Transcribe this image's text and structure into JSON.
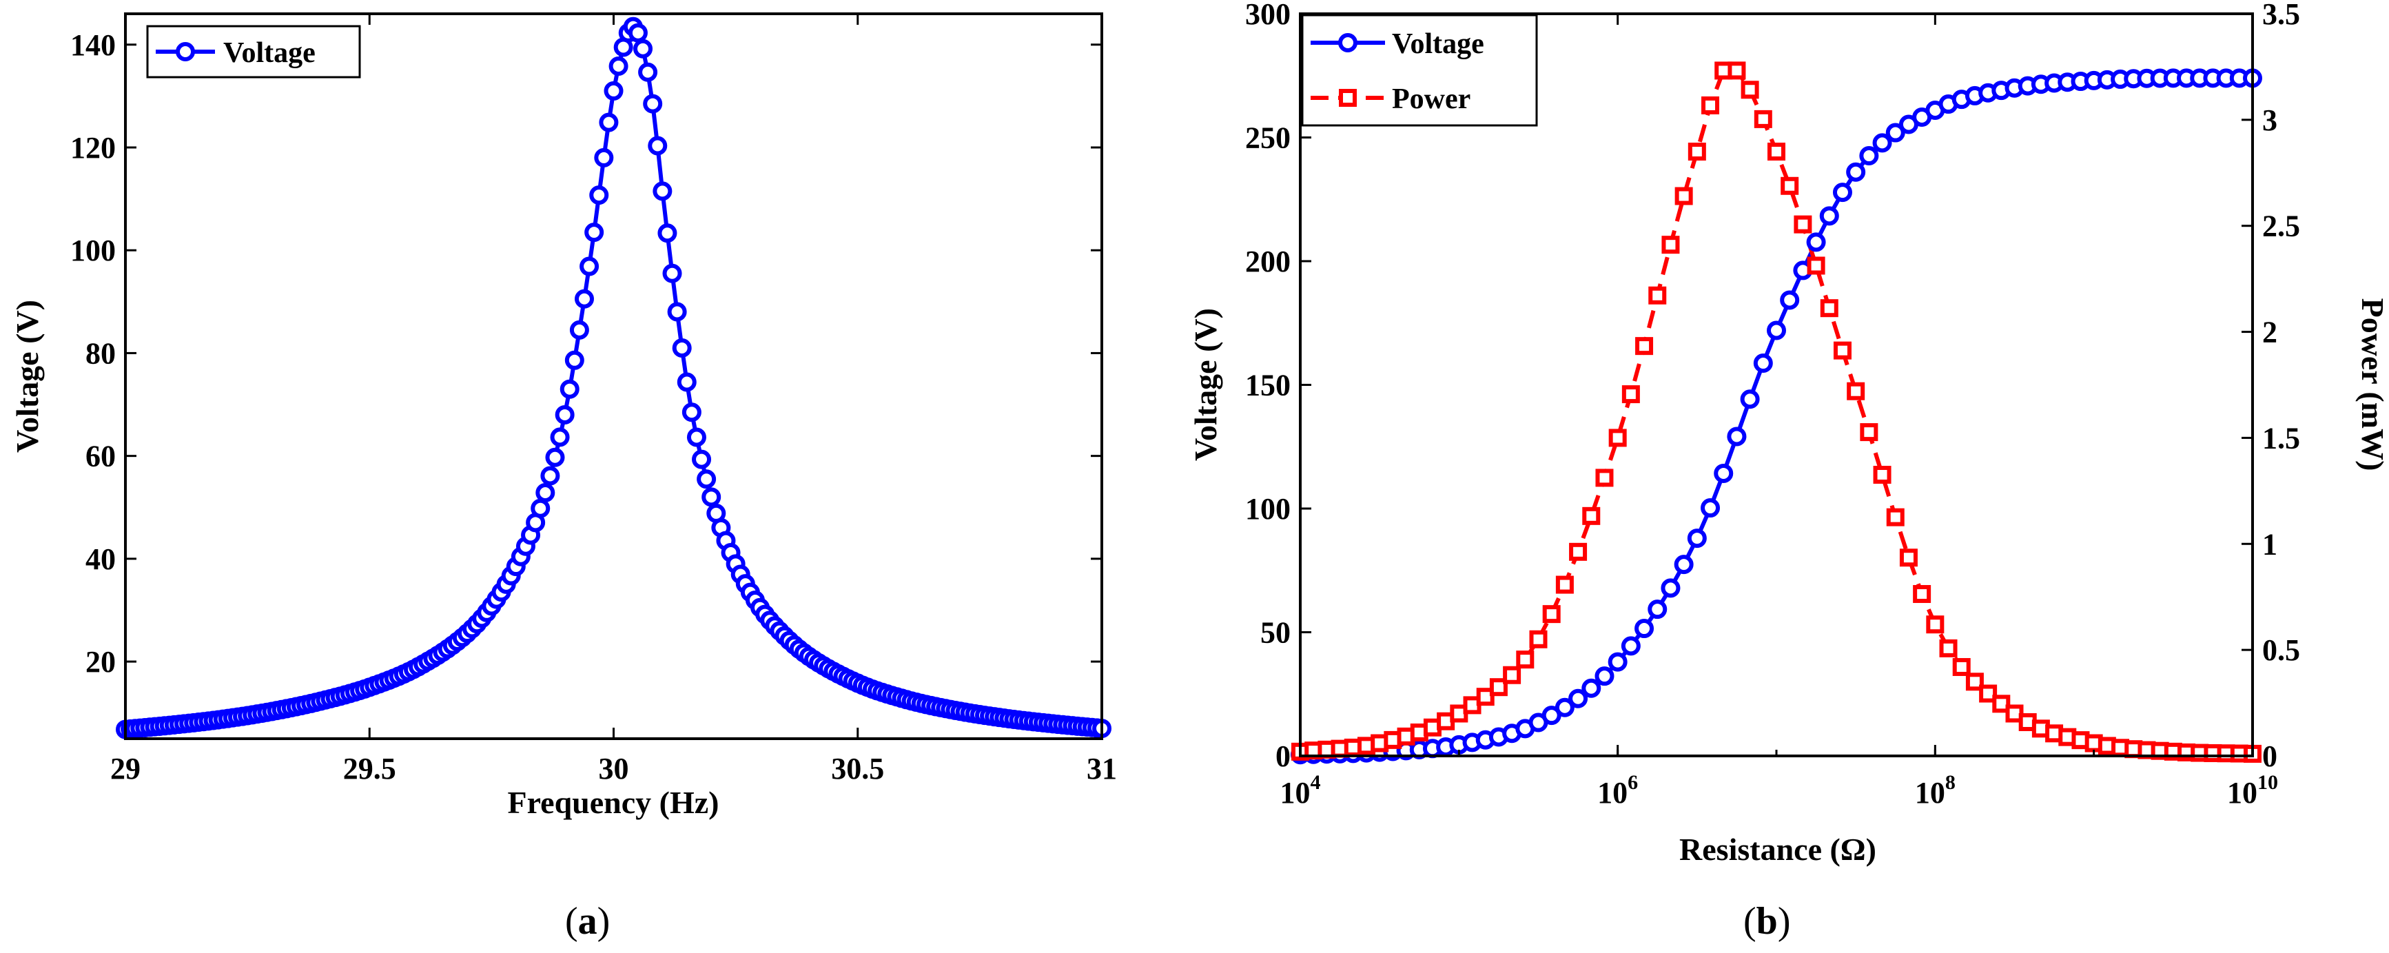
{
  "captions": {
    "a": "a",
    "b": "b"
  },
  "chart_data": [
    {
      "type": "line",
      "xlabel": "Frequency (Hz)",
      "ylabel": "Voltage (V)",
      "xlim": [
        29,
        31
      ],
      "ylim": [
        5,
        146
      ],
      "xticks": [
        29,
        29.5,
        30,
        30.5,
        31
      ],
      "xtick_labels": [
        "29",
        "29.5",
        "30",
        "30.5",
        "31"
      ],
      "yticks": [
        20,
        40,
        60,
        80,
        100,
        120,
        140
      ],
      "ytick_labels": [
        "20",
        "40",
        "60",
        "80",
        "100",
        "120",
        "140"
      ],
      "legend": "top-left",
      "grid": false,
      "series": [
        {
          "name": "Voltage",
          "color": "#0000ff",
          "marker": "circle",
          "x": [
            29.0,
            29.1,
            29.2,
            29.3,
            29.4,
            29.5,
            29.6,
            29.7,
            29.75,
            29.8,
            29.85,
            29.9,
            29.93,
            29.96,
            29.98,
            30.0,
            30.02,
            30.04,
            30.06,
            30.08,
            30.1,
            30.12,
            30.14,
            30.16,
            30.2,
            30.25,
            30.3,
            30.35,
            30.4,
            30.5,
            30.6,
            30.7,
            30.8,
            30.9,
            31.0
          ],
          "y": [
            6.8,
            7.7,
            8.8,
            10.3,
            12.3,
            15.0,
            19.0,
            25.5,
            30.8,
            38.5,
            49.8,
            68.0,
            84.5,
            103.5,
            118.0,
            131.0,
            139.5,
            143.5,
            139.2,
            128.5,
            111.5,
            95.5,
            81.0,
            68.5,
            52.0,
            39.0,
            30.5,
            25.0,
            21.0,
            15.8,
            12.6,
            10.5,
            9.0,
            7.9,
            7.0
          ]
        }
      ]
    },
    {
      "type": "line",
      "xlabel": "Resistance (Ω)",
      "ylabel": "Voltage (V)",
      "y2label": "Power (mW)",
      "xscale": "log",
      "xlim": [
        10000,
        10000000000
      ],
      "xticks": [
        10000,
        1000000,
        100000000,
        10000000000
      ],
      "xtick_labels": [
        {
          "base": "10",
          "exp": "4"
        },
        {
          "base": "10",
          "exp": "6"
        },
        {
          "base": "10",
          "exp": "8"
        },
        {
          "base": "10",
          "exp": "10"
        }
      ],
      "ylim": [
        0,
        300
      ],
      "yticks": [
        0,
        50,
        100,
        150,
        200,
        250,
        300
      ],
      "ytick_labels": [
        "0",
        "50",
        "100",
        "150",
        "200",
        "250",
        "300"
      ],
      "y2lim": [
        0,
        3.5
      ],
      "y2ticks": [
        0,
        0.5,
        1,
        1.5,
        2,
        2.5,
        3,
        3.5
      ],
      "y2tick_labels": [
        "0",
        "0.5",
        "1",
        "1.5",
        "2",
        "2.5",
        "3",
        "3.5"
      ],
      "legend": "top-left",
      "grid": false,
      "series": [
        {
          "name": "Voltage",
          "axis": "left",
          "color": "#0000ff",
          "marker": "circle",
          "x": [
            10000,
            31623,
            100000,
            316228,
            1000000,
            3162278,
            10000000,
            31622777,
            100000000,
            316227766,
            1000000000,
            3162277660,
            10000000000
          ],
          "y": [
            0.5,
            1.5,
            4.5,
            13.5,
            38.0,
            88.0,
            172.0,
            236.0,
            261.0,
            270.0,
            273.0,
            274.0,
            274.0
          ]
        },
        {
          "name": "Power",
          "axis": "right",
          "color": "#ff0000",
          "marker": "square",
          "dash": true,
          "x": [
            10000,
            31623,
            100000,
            316228,
            1000000,
            3162278,
            5000000,
            10000000,
            31622777,
            100000000,
            316227766,
            1000000000,
            3162277660,
            10000000000
          ],
          "y": [
            0.02,
            0.06,
            0.2,
            0.55,
            1.5,
            2.85,
            3.25,
            2.85,
            1.72,
            0.62,
            0.2,
            0.06,
            0.02,
            0.01
          ]
        }
      ]
    }
  ]
}
